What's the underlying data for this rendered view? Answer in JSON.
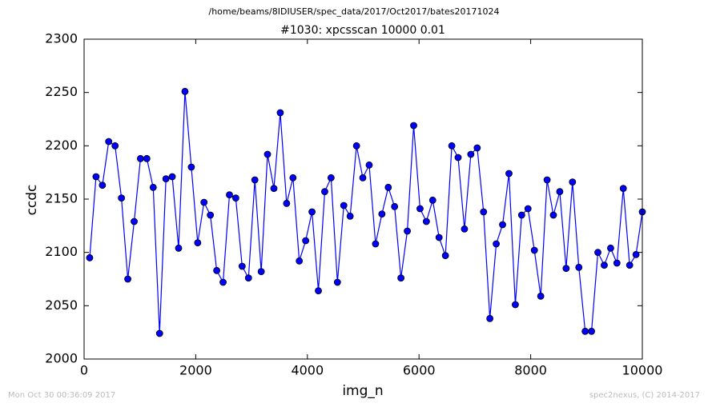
{
  "chart_data": {
    "type": "line",
    "suptitle": "/home/beams/8IDIUSER/spec_data/2017/Oct2017/bates20171024",
    "title": "#1030: xpcsscan 10000 0.01",
    "xlabel": "img_n",
    "ylabel": "ccdc",
    "footer_left": "Mon Oct 30 00:36:09 2017",
    "footer_right": "spec2nexus, (C) 2014-2017",
    "xlim": [
      0,
      10000
    ],
    "xticks": [
      0,
      2000,
      4000,
      6000,
      8000,
      10000
    ],
    "ylim": [
      2000,
      2300
    ],
    "yticks": [
      2000,
      2050,
      2100,
      2150,
      2200,
      2250,
      2300
    ],
    "grid": false,
    "x": [
      100,
      214,
      328,
      441,
      555,
      669,
      783,
      897,
      1010,
      1124,
      1238,
      1352,
      1466,
      1579,
      1693,
      1807,
      1921,
      2035,
      2148,
      2262,
      2376,
      2490,
      2604,
      2717,
      2831,
      2945,
      3059,
      3173,
      3286,
      3400,
      3514,
      3628,
      3742,
      3855,
      3969,
      4083,
      4197,
      4311,
      4424,
      4538,
      4652,
      4766,
      4880,
      4993,
      5107,
      5221,
      5335,
      5449,
      5562,
      5676,
      5790,
      5904,
      6018,
      6131,
      6245,
      6359,
      6473,
      6587,
      6700,
      6814,
      6928,
      7042,
      7156,
      7269,
      7383,
      7497,
      7611,
      7725,
      7838,
      7952,
      8066,
      8180,
      8294,
      8407,
      8521,
      8635,
      8749,
      8863,
      8976,
      9090,
      9204,
      9318,
      9432,
      9545,
      9659,
      9773,
      9887,
      10000
    ],
    "series": [
      {
        "color": "#0000ff",
        "values": [
          2095,
          2171,
          2163,
          2204,
          2200,
          2151,
          2075,
          2129,
          2188,
          2188,
          2161,
          2024,
          2169,
          2171,
          2104,
          2251,
          2180,
          2109,
          2147,
          2135,
          2083,
          2072,
          2154,
          2151,
          2087,
          2076,
          2168,
          2082,
          2192,
          2160,
          2231,
          2146,
          2170,
          2092,
          2111,
          2138,
          2064,
          2157,
          2170,
          2072,
          2144,
          2134,
          2200,
          2170,
          2182,
          2108,
          2136,
          2161,
          2143,
          2076,
          2120,
          2219,
          2141,
          2129,
          2149,
          2114,
          2097,
          2200,
          2189,
          2122,
          2192,
          2198,
          2138,
          2038,
          2108,
          2126,
          2174,
          2051,
          2135,
          2141,
          2102,
          2059,
          2168,
          2135,
          2157,
          2085,
          2166,
          2086,
          2026,
          2026,
          2100,
          2088,
          2104,
          2090,
          2160,
          2088,
          2098,
          2138
        ]
      }
    ]
  }
}
